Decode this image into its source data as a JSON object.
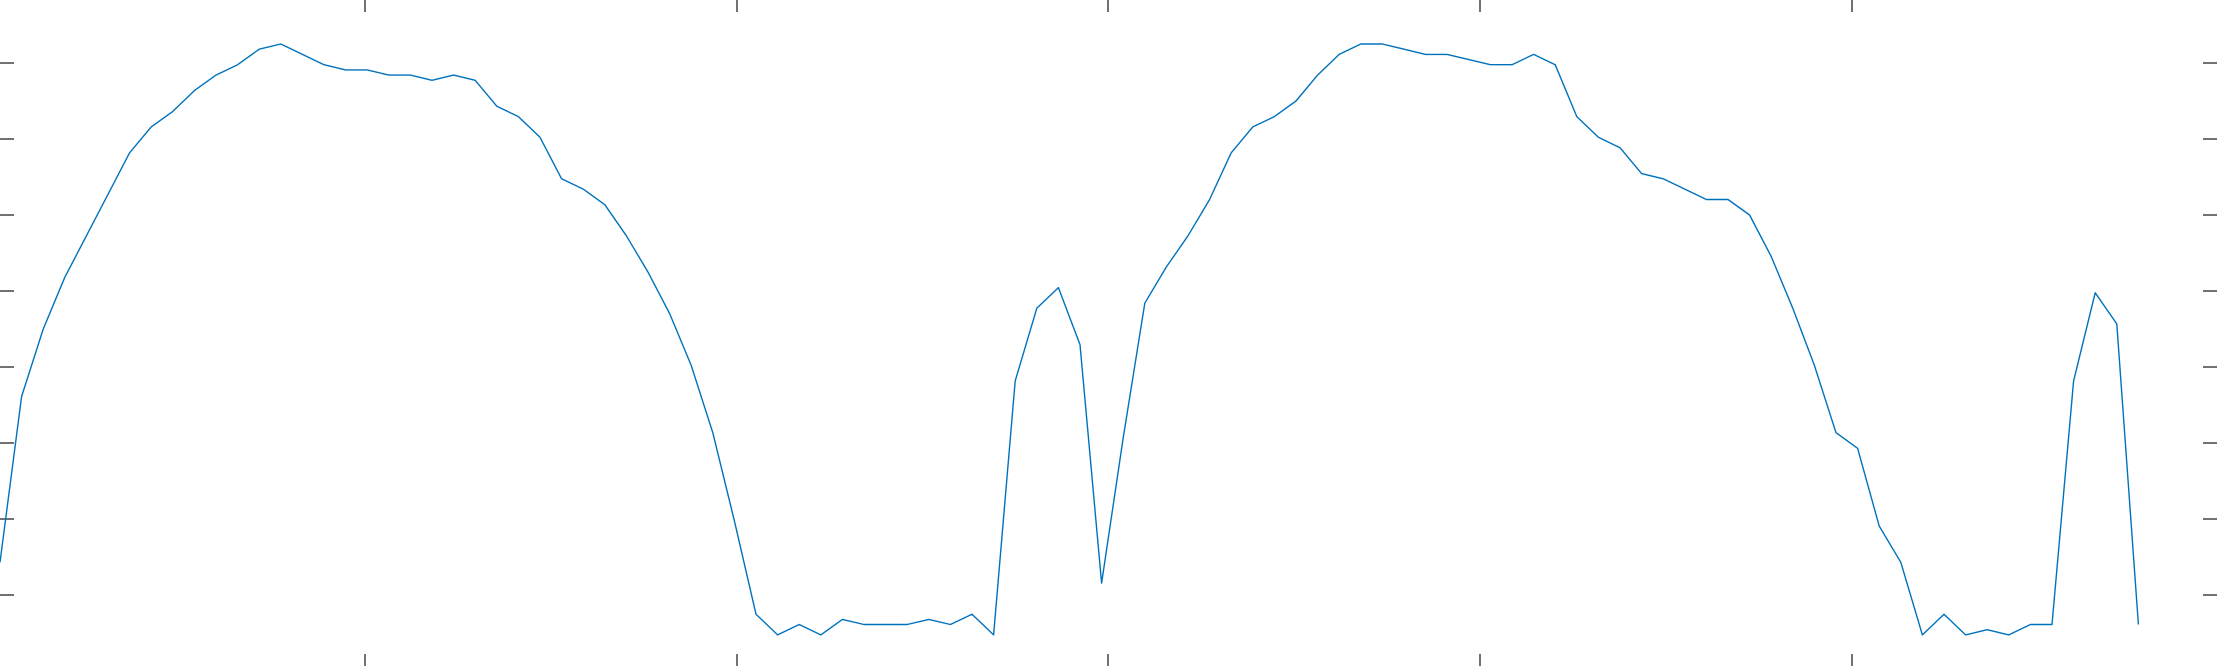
{
  "chart_data": {
    "type": "line",
    "title": "",
    "xlabel": "",
    "ylabel": "",
    "grid": false,
    "legend": false,
    "x_tick_count_top": 5,
    "x_tick_count_bottom": 5,
    "y_tick_count": 8,
    "series": [
      {
        "color": "#0072bd",
        "values": [
          0.02,
          0.34,
          0.47,
          0.57,
          0.65,
          0.73,
          0.81,
          0.86,
          0.89,
          0.93,
          0.96,
          0.98,
          1.01,
          1.02,
          1.0,
          0.98,
          0.97,
          0.97,
          0.96,
          0.96,
          0.95,
          0.96,
          0.95,
          0.9,
          0.88,
          0.84,
          0.76,
          0.74,
          0.71,
          0.65,
          0.58,
          0.5,
          0.4,
          0.27,
          0.1,
          -0.08,
          -0.12,
          -0.1,
          -0.12,
          -0.09,
          -0.1,
          -0.1,
          -0.1,
          -0.09,
          -0.1,
          -0.08,
          -0.12,
          0.37,
          0.51,
          0.55,
          0.44,
          -0.02,
          0.26,
          0.52,
          0.59,
          0.65,
          0.72,
          0.81,
          0.86,
          0.88,
          0.91,
          0.96,
          1.0,
          1.02,
          1.02,
          1.01,
          1.0,
          1.0,
          0.99,
          0.98,
          0.98,
          1.0,
          0.98,
          0.88,
          0.84,
          0.82,
          0.77,
          0.76,
          0.74,
          0.72,
          0.72,
          0.69,
          0.61,
          0.51,
          0.4,
          0.27,
          0.24,
          0.09,
          0.02,
          -0.12,
          -0.08,
          -0.12,
          -0.11,
          -0.12,
          -0.1,
          -0.1,
          0.37,
          0.54,
          0.48,
          -0.1
        ]
      }
    ]
  }
}
